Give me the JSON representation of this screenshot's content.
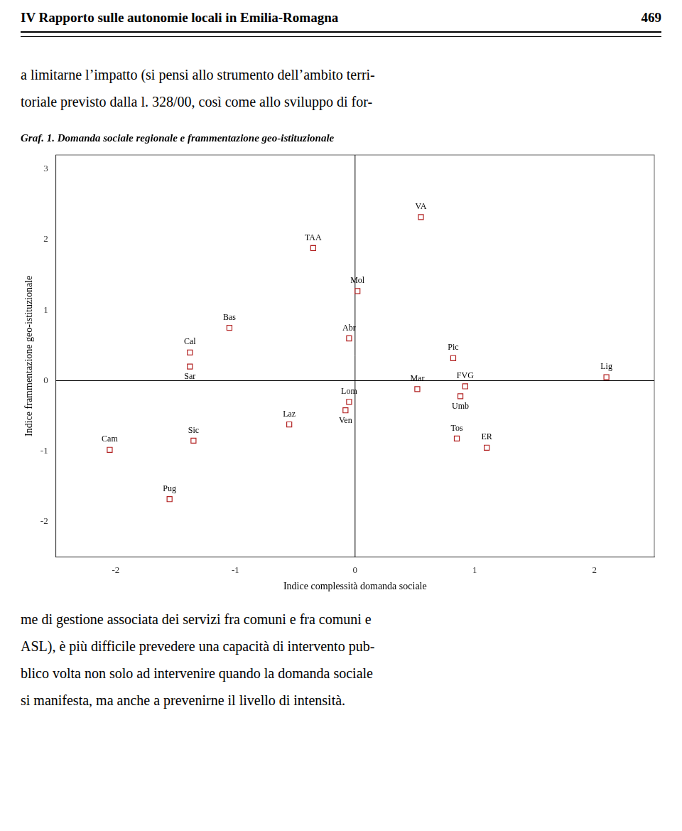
{
  "header": "IV Rapporto sulle autonomie locali in Emilia-Romagna",
  "page_number": "469",
  "text_above_chart": [
    "a limitarne l’impatto (si pensi allo strumento dell’ambito terri-",
    "toriale previsto dalla l. 328/00, così come allo sviluppo di for-"
  ],
  "text_below_chart": [
    "me di gestione associata dei servizi fra comuni e fra comuni e",
    "ASL), è più difficile prevedere una capacità di intervento pub-",
    "blico volta non solo ad intervenire quando la domanda sociale",
    "si manifesta, ma anche a prevenirne il livello di intensità."
  ],
  "chart_data": {
    "type": "scatter",
    "title": "Graf. 1. Domanda sociale regionale e frammentazione geo-istituzionale",
    "x_label": "Indice complessità domanda sociale",
    "y_label": "Indice frammentazione geo-istituzionale",
    "point_labels": [
      "VA",
      "TAA",
      "Mol",
      "Bas",
      "Abr",
      "Cal",
      "Sar",
      "Pic",
      "FVG",
      "Mar",
      "Umb",
      "Lig",
      "Lom",
      "Ven",
      "Laz",
      "Sic",
      "Tos",
      "ER",
      "Cam",
      "Pug"
    ],
    "x": [
      0.55,
      -0.35,
      0.02,
      -1.05,
      -0.05,
      -1.38,
      -1.38,
      0.82,
      0.92,
      0.52,
      0.88,
      2.1,
      -0.05,
      -0.08,
      -0.55,
      -1.35,
      0.85,
      1.1,
      -2.05,
      -1.55
    ],
    "values": [
      2.32,
      1.88,
      1.27,
      0.75,
      0.6,
      0.4,
      0.2,
      0.32,
      -0.08,
      -0.12,
      -0.22,
      0.05,
      -0.3,
      -0.42,
      -0.62,
      -0.85,
      -0.82,
      -0.95,
      -0.98,
      -1.68
    ],
    "color": "#b22222",
    "marker": "square",
    "xlim": [
      -2.5,
      2.5
    ],
    "ylim": [
      -2.5,
      3.2
    ],
    "xticks": [
      -2,
      -1,
      0,
      1,
      2
    ],
    "yticks": [
      -2,
      -1,
      0,
      1,
      2,
      3
    ],
    "axhline": 0,
    "axvline": 0,
    "grid": false,
    "legend": false
  }
}
